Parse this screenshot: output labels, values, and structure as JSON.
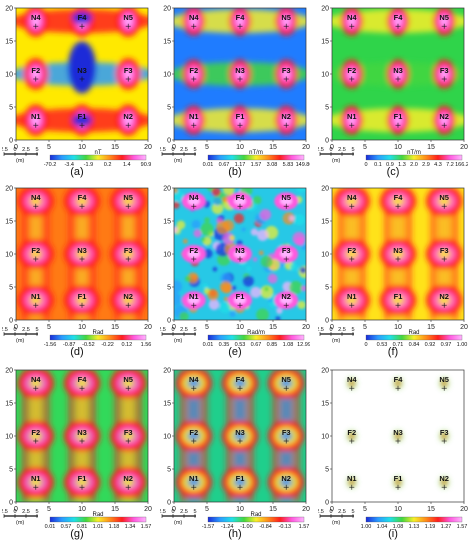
{
  "colors": {
    "low": "#1a2bd8",
    "mid_blue": "#2b9bff",
    "cyan": "#20e0e8",
    "green": "#43d640",
    "yellow": "#f7ef2a",
    "orange": "#ff8c1a",
    "red": "#ff1d1d",
    "magenta": "#ff5adf",
    "high": "#ffb3ff",
    "scale_bar": "#111111"
  },
  "axis": {
    "y_ticks": [
      "20",
      "15",
      "10",
      "5",
      "0"
    ],
    "x_ticks": [
      "0",
      "5",
      "10",
      "15",
      "20"
    ],
    "scale_ticks": [
      "2.5",
      "0",
      "2.5",
      "5"
    ],
    "scale_unit": "(m)"
  },
  "stations": [
    {
      "label": "N4",
      "x": 3,
      "y": 18
    },
    {
      "label": "F4",
      "x": 10,
      "y": 18
    },
    {
      "label": "N5",
      "x": 17,
      "y": 18
    },
    {
      "label": "F2",
      "x": 3,
      "y": 10
    },
    {
      "label": "N3",
      "x": 10,
      "y": 10
    },
    {
      "label": "F3",
      "x": 17,
      "y": 10
    },
    {
      "label": "N1",
      "x": 3,
      "y": 3
    },
    {
      "label": "F1",
      "x": 10,
      "y": 3
    },
    {
      "label": "N2",
      "x": 17,
      "y": 3
    }
  ],
  "panels": [
    {
      "id": "a",
      "caption": "(a)",
      "unit": "nT",
      "ticks": [
        "-70.2",
        "-3.4",
        "-1.9",
        "0.2",
        "1.4",
        "90.9"
      ]
    },
    {
      "id": "b",
      "caption": "(b)",
      "unit": "nT/m",
      "ticks": [
        "0.01",
        "0.67",
        "1.17",
        "1.57",
        "3.08",
        "5.83",
        "149.86"
      ]
    },
    {
      "id": "c",
      "caption": "(c)",
      "unit": "nT/m",
      "ticks": [
        "0",
        "0.1",
        "0.9",
        "1.3",
        "2.0",
        "2.9",
        "4.3",
        "7.2",
        "166.2"
      ]
    },
    {
      "id": "d",
      "caption": "(d)",
      "unit": "Rad",
      "ticks": [
        "-1.56",
        "-0.87",
        "-0.52",
        "-0.22",
        "0.12",
        "1.56"
      ]
    },
    {
      "id": "e",
      "caption": "(e)",
      "unit": "Rad/m",
      "ticks": [
        "0.01",
        "0.35",
        "0.53",
        "0.67",
        "0.85",
        "1.08",
        "12.99"
      ]
    },
    {
      "id": "f",
      "caption": "(f)",
      "unit": "Rad",
      "ticks": [
        "0",
        "0.53",
        "0.71",
        "0.84",
        "0.92",
        "0.97",
        "1.00"
      ]
    },
    {
      "id": "g",
      "caption": "(g)",
      "unit": "Rad",
      "ticks": [
        "0.01",
        "0.57",
        "0.81",
        "1.01",
        "1.18",
        "1.34",
        "1.57"
      ]
    },
    {
      "id": "h",
      "caption": "(h)",
      "unit": "Rad",
      "ticks": [
        "-1.57",
        "-1.24",
        "-1.00",
        "-0.84",
        "-0.13",
        "1.57"
      ]
    },
    {
      "id": "i",
      "caption": "(i)",
      "unit": "",
      "ticks": [
        "1.00",
        "1.04",
        "1.08",
        "1.13",
        "1.19",
        "1.27",
        "1.57"
      ]
    }
  ]
}
